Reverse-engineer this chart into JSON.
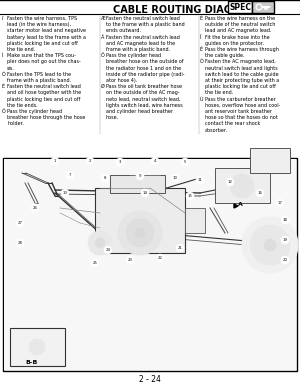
{
  "title": "CABLE ROUTING DIAGRAM",
  "spec_label": "SPEC",
  "page_number": "2 - 24",
  "bg_color": "#ffffff",
  "text_color": "#000000",
  "col1_lines": [
    [
      "ï",
      "Fasten the wire harness, TPS"
    ],
    [
      "",
      "lead (in the wire harness),"
    ],
    [
      "",
      "starter motor lead and negative"
    ],
    [
      "",
      "battery lead to the frame with a"
    ],
    [
      "",
      "plastic locking tie and cut off"
    ],
    [
      "",
      "the tie end."
    ],
    [
      "Ì",
      "Make sure that the TPS cou-"
    ],
    [
      "",
      "pler does not go out the chas-"
    ],
    [
      "",
      "sis."
    ],
    [
      "Ó",
      "Fasten the TPS lead to the"
    ],
    [
      "",
      "frame with a plastic band."
    ],
    [
      "È",
      "Fasten the neutral switch lead"
    ],
    [
      "",
      "and oil hose together with the"
    ],
    [
      "",
      "plastic locking ties and cut off"
    ],
    [
      "",
      "the tie ends."
    ],
    [
      "Ô",
      "Pass the cylinder head"
    ],
    [
      "",
      "breather hose through the hose"
    ],
    [
      "",
      "holder."
    ]
  ],
  "col2_lines": [
    [
      "Æ",
      "Fasten the neutral switch lead"
    ],
    [
      "",
      "to the frame with a plastic band"
    ],
    [
      "",
      "ends outward."
    ],
    [
      "Å",
      "Fasten the neutral switch lead"
    ],
    [
      "",
      "and AC magneto lead to the"
    ],
    [
      "",
      "frame with a plastic band."
    ],
    [
      "Ö",
      "Pass the cylinder head"
    ],
    [
      "",
      "breather hose on the outside of"
    ],
    [
      "",
      "the radiator hose 1 and on the"
    ],
    [
      "",
      "inside of the radiator pipe (radi-"
    ],
    [
      "",
      "ator hose 4)."
    ],
    [
      "Ø",
      "Pass the oil tank breather hose"
    ],
    [
      "",
      "on the outside of the AC mag-"
    ],
    [
      "",
      "neto lead, neutral switch lead,"
    ],
    [
      "",
      "lights switch lead, wire harness"
    ],
    [
      "",
      "and cylinder head breather"
    ],
    [
      "",
      "hose."
    ]
  ],
  "col3_lines": [
    [
      "É",
      "Pass the wire harness on the"
    ],
    [
      "",
      "outside of the neutral switch"
    ],
    [
      "",
      "lead and AC magneto lead."
    ],
    [
      "Ï",
      "Fit the brake hose into the"
    ],
    [
      "",
      "guides on the protector."
    ],
    [
      "Ê",
      "Pass the wire harness through"
    ],
    [
      "",
      "the cable guide."
    ],
    [
      "Ò",
      "Fasten the AC magneto lead,"
    ],
    [
      "",
      "neutral switch lead and lights"
    ],
    [
      "",
      "switch lead to the cable guide"
    ],
    [
      "",
      "at their protecting tube with a"
    ],
    [
      "",
      "plastic locking tie and cut off"
    ],
    [
      "",
      "the tie end."
    ],
    [
      "Ù",
      "Pass the carburetor breather"
    ],
    [
      "",
      "hoses, overflow hose and cool-"
    ],
    [
      "",
      "ant reservoir tank breather"
    ],
    [
      "",
      "hose so that the hoses do not"
    ],
    [
      "",
      "contact the rear shock"
    ],
    [
      "",
      "absorber."
    ]
  ]
}
